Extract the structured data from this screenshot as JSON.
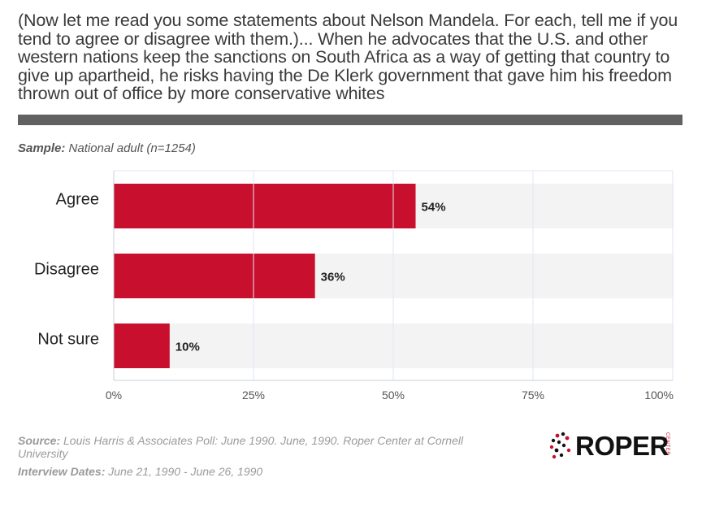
{
  "title": "(Now let me read you some statements about Nelson Mandela. For each, tell me if you tend to agree or disagree with them.)... When he advocates that the U.S. and other western nations keep the sanctions on South Africa as a way of getting that country to give up apartheid, he risks having the De Klerk government that gave him his freedom thrown out of office by more conservative whites",
  "sample": {
    "label": "Sample:",
    "value": "National adult (n=1254)"
  },
  "chart_data": {
    "type": "bar",
    "orientation": "horizontal",
    "categories": [
      "Agree",
      "Disagree",
      "Not sure"
    ],
    "values": [
      54,
      36,
      10
    ],
    "value_labels": [
      "54%",
      "36%",
      "10%"
    ],
    "xlim": [
      0,
      100
    ],
    "x_ticks": [
      0,
      25,
      50,
      75,
      100
    ],
    "x_tick_labels": [
      "0%",
      "25%",
      "50%",
      "75%",
      "100%"
    ],
    "grid": true,
    "bar_color": "#c8102e",
    "track_color": "#f3f3f3"
  },
  "footer": {
    "source_label": "Source:",
    "source_text": "Louis Harris & Associates Poll: June 1990. June, 1990. Roper Center at Cornell University",
    "dates_label": "Interview Dates:",
    "dates_text": "June 21, 1990 - June 26, 1990"
  },
  "logo": {
    "text": "ROPER",
    "subtext": "CENTER",
    "accent": "#c8102e"
  }
}
